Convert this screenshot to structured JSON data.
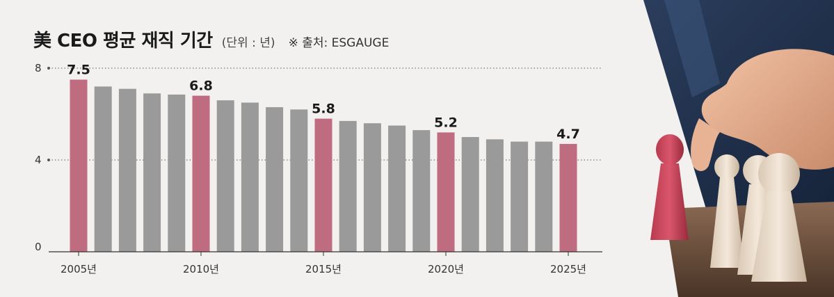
{
  "title": "美 CEO 평균 재직 기간",
  "unit": "(단위 : 년)",
  "source": "※ 출처: ESGAUGE",
  "colors": {
    "highlight": "#bf6b80",
    "normal": "#9a9a9a",
    "background": "#f2f1ef",
    "grid": "#555555"
  },
  "chart_data": {
    "type": "bar",
    "title": "美 CEO 평균 재직 기간",
    "ylabel": "(단위 : 년)",
    "xlabel": "",
    "ylim": [
      0,
      8
    ],
    "yticks": [
      "0",
      "4",
      "8"
    ],
    "grid": "dotted at 4 and 8",
    "categories": [
      "2005",
      "2006",
      "2007",
      "2008",
      "2009",
      "2010",
      "2011",
      "2012",
      "2013",
      "2014",
      "2015",
      "2016",
      "2017",
      "2018",
      "2019",
      "2020",
      "2021",
      "2022",
      "2023",
      "2024",
      "2025"
    ],
    "values": [
      7.5,
      7.2,
      7.1,
      6.9,
      6.85,
      6.8,
      6.6,
      6.5,
      6.3,
      6.2,
      5.8,
      5.7,
      5.6,
      5.5,
      5.3,
      5.2,
      5.0,
      4.9,
      4.8,
      4.8,
      4.7
    ],
    "highlighted": [
      "2005",
      "2010",
      "2015",
      "2020",
      "2025"
    ],
    "data_labels": [
      {
        "category": "2005",
        "text": "7.5"
      },
      {
        "category": "2010",
        "text": "6.8"
      },
      {
        "category": "2015",
        "text": "5.8"
      },
      {
        "category": "2020",
        "text": "5.2"
      },
      {
        "category": "2025",
        "text": "4.7"
      }
    ],
    "x_tick_labels": [
      {
        "category": "2005",
        "text": "2005년"
      },
      {
        "category": "2010",
        "text": "2010년"
      },
      {
        "category": "2015",
        "text": "2015년"
      },
      {
        "category": "2020",
        "text": "2020년"
      },
      {
        "category": "2025",
        "text": "2025년"
      }
    ]
  }
}
